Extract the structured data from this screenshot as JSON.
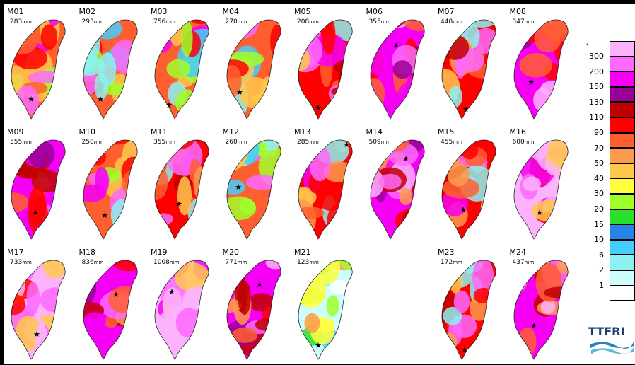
{
  "maps": [
    {
      "code": "M01",
      "amount": "283",
      "unit": "mm",
      "palette": "mixed",
      "star": true
    },
    {
      "code": "M02",
      "amount": "293",
      "unit": "mm",
      "palette": "mixed",
      "star": true
    },
    {
      "code": "M03",
      "amount": "756",
      "unit": "mm",
      "palette": "mixed",
      "star": true
    },
    {
      "code": "M04",
      "amount": "270",
      "unit": "mm",
      "palette": "mixed",
      "star": true
    },
    {
      "code": "M05",
      "amount": "208",
      "unit": "mm",
      "palette": "warm",
      "star": true
    },
    {
      "code": "M06",
      "amount": "355",
      "unit": "mm",
      "palette": "magenta",
      "star": true
    },
    {
      "code": "M07",
      "amount": "448",
      "unit": "mm",
      "palette": "warm",
      "star": true
    },
    {
      "code": "M08",
      "amount": "347",
      "unit": "mm",
      "palette": "magenta",
      "star": true
    },
    {
      "code": "M09",
      "amount": "555",
      "unit": "mm",
      "palette": "magenta",
      "star": true
    },
    {
      "code": "M10",
      "amount": "258",
      "unit": "mm",
      "palette": "mixed",
      "star": true
    },
    {
      "code": "M11",
      "amount": "355",
      "unit": "mm",
      "palette": "warm",
      "star": true
    },
    {
      "code": "M12",
      "amount": "260",
      "unit": "mm",
      "palette": "mixed",
      "star": true
    },
    {
      "code": "M13",
      "amount": "285",
      "unit": "mm",
      "palette": "warm",
      "star": true
    },
    {
      "code": "M14",
      "amount": "509",
      "unit": "mm",
      "palette": "magenta",
      "star": true
    },
    {
      "code": "M15",
      "amount": "455",
      "unit": "mm",
      "palette": "warm",
      "star": true
    },
    {
      "code": "M16",
      "amount": "600",
      "unit": "mm",
      "palette": "pink",
      "star": true
    },
    {
      "code": "M17",
      "amount": "733",
      "unit": "mm",
      "palette": "pink",
      "star": true
    },
    {
      "code": "M18",
      "amount": "836",
      "unit": "mm",
      "palette": "magenta",
      "star": true
    },
    {
      "code": "M19",
      "amount": "1008",
      "unit": "mm",
      "palette": "pink",
      "star": true
    },
    {
      "code": "M20",
      "amount": "771",
      "unit": "mm",
      "palette": "magenta",
      "star": true
    },
    {
      "code": "M21",
      "amount": "123",
      "unit": "mm",
      "palette": "cool",
      "star": true
    },
    null,
    {
      "code": "M23",
      "amount": "172",
      "unit": "mm",
      "palette": "warm",
      "star": true
    },
    {
      "code": "M24",
      "amount": "437",
      "unit": "mm",
      "palette": "magenta",
      "star": true
    }
  ],
  "legend": {
    "title_mark": ".",
    "levels": [
      {
        "label": "300",
        "color": "#fdb2fd"
      },
      {
        "label": "200",
        "color": "#fd6afd"
      },
      {
        "label": "150",
        "color": "#f500f5"
      },
      {
        "label": "130",
        "color": "#990099"
      },
      {
        "label": "110",
        "color": "#c00000"
      },
      {
        "label": "90",
        "color": "#fe0000"
      },
      {
        "label": "70",
        "color": "#ff5f2f"
      },
      {
        "label": "50",
        "color": "#fe9a4c"
      },
      {
        "label": "40",
        "color": "#ffc84b"
      },
      {
        "label": "30",
        "color": "#ffff3e"
      },
      {
        "label": "20",
        "color": "#a0fe2b"
      },
      {
        "label": "15",
        "color": "#2bdf2b"
      },
      {
        "label": "10",
        "color": "#2485e8"
      },
      {
        "label": "6",
        "color": "#45cdfd"
      },
      {
        "label": "2",
        "color": "#8cf1f1"
      },
      {
        "label": "1",
        "color": "#ccfefe"
      },
      {
        "label": "",
        "color": "#ffffff"
      }
    ]
  },
  "logo": {
    "text": "TTFRI"
  }
}
